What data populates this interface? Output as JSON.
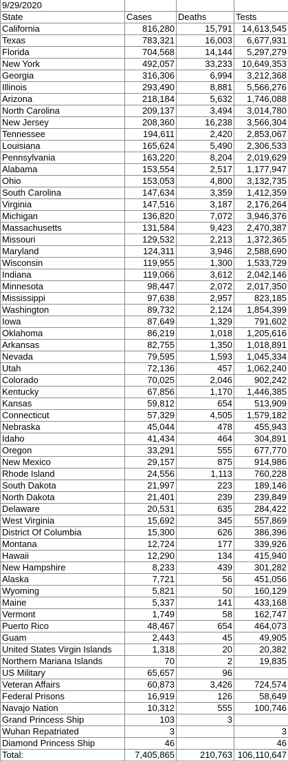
{
  "date": "9/29/2020",
  "headers": [
    "State",
    "Cases",
    "Deaths",
    "Tests"
  ],
  "rows": [
    [
      "California",
      "816,280",
      "15,791",
      "14,613,545"
    ],
    [
      "Texas",
      "783,321",
      "16,003",
      "6,677,931"
    ],
    [
      "Florida",
      "704,568",
      "14,144",
      "5,297,279"
    ],
    [
      "New York",
      "492,057",
      "33,233",
      "10,649,353"
    ],
    [
      "Georgia",
      "316,306",
      "6,994",
      "3,212,368"
    ],
    [
      "Illinois",
      "293,490",
      "8,881",
      "5,566,276"
    ],
    [
      "Arizona",
      "218,184",
      "5,632",
      "1,746,088"
    ],
    [
      "North Carolina",
      "209,137",
      "3,494",
      "3,014,780"
    ],
    [
      "New Jersey",
      "208,360",
      "16,238",
      "3,566,304"
    ],
    [
      "Tennessee",
      "194,611",
      "2,420",
      "2,853,067"
    ],
    [
      "Louisiana",
      "165,624",
      "5,490",
      "2,306,533"
    ],
    [
      "Pennsylvania",
      "163,220",
      "8,204",
      "2,019,629"
    ],
    [
      "Alabama",
      "153,554",
      "2,517",
      "1,177,947"
    ],
    [
      "Ohio",
      "153,053",
      "4,800",
      "3,132,735"
    ],
    [
      "South Carolina",
      "147,634",
      "3,359",
      "1,412,359"
    ],
    [
      "Virginia",
      "147,516",
      "3,187",
      "2,176,264"
    ],
    [
      "Michigan",
      "136,820",
      "7,072",
      "3,946,376"
    ],
    [
      "Massachusetts",
      "131,584",
      "9,423",
      "2,470,387"
    ],
    [
      "Missouri",
      "129,532",
      "2,213",
      "1,372,365"
    ],
    [
      "Maryland",
      "124,311",
      "3,946",
      "2,588,690"
    ],
    [
      "Wisconsin",
      "119,955",
      "1,300",
      "1,533,729"
    ],
    [
      "Indiana",
      "119,066",
      "3,612",
      "2,042,146"
    ],
    [
      "Minnesota",
      "98,447",
      "2,072",
      "2,017,350"
    ],
    [
      "Mississippi",
      "97,638",
      "2,957",
      "823,185"
    ],
    [
      "Washington",
      "89,732",
      "2,124",
      "1,854,399"
    ],
    [
      "Iowa",
      "87,649",
      "1,329",
      "791,602"
    ],
    [
      "Oklahoma",
      "86,219",
      "1,018",
      "1,205,616"
    ],
    [
      "Arkansas",
      "82,755",
      "1,350",
      "1,018,891"
    ],
    [
      "Nevada",
      "79,595",
      "1,593",
      "1,045,334"
    ],
    [
      "Utah",
      "72,136",
      "457",
      "1,062,240"
    ],
    [
      "Colorado",
      "70,025",
      "2,046",
      "902,242"
    ],
    [
      "Kentucky",
      "67,856",
      "1,170",
      "1,446,385"
    ],
    [
      "Kansas",
      "59,812",
      "654",
      "513,909"
    ],
    [
      "Connecticut",
      "57,329",
      "4,505",
      "1,579,182"
    ],
    [
      "Nebraska",
      "45,044",
      "478",
      "455,943"
    ],
    [
      "Idaho",
      "41,434",
      "464",
      "304,891"
    ],
    [
      "Oregon",
      "33,291",
      "555",
      "677,770"
    ],
    [
      "New Mexico",
      "29,157",
      "875",
      "914,986"
    ],
    [
      "Rhode Island",
      "24,556",
      "1,113",
      "760,228"
    ],
    [
      "South Dakota",
      "21,997",
      "223",
      "189,146"
    ],
    [
      "North Dakota",
      "21,401",
      "239",
      "239,849"
    ],
    [
      "Delaware",
      "20,531",
      "635",
      "284,422"
    ],
    [
      "West Virginia",
      "15,692",
      "345",
      "557,869"
    ],
    [
      "District Of Columbia",
      "15,300",
      "626",
      "386,396"
    ],
    [
      "Montana",
      "12,724",
      "177",
      "339,926"
    ],
    [
      "Hawaii",
      "12,290",
      "134",
      "415,940"
    ],
    [
      "New Hampshire",
      "8,233",
      "439",
      "301,282"
    ],
    [
      "Alaska",
      "7,721",
      "56",
      "451,056"
    ],
    [
      "Wyoming",
      "5,821",
      "50",
      "160,129"
    ],
    [
      "Maine",
      "5,337",
      "141",
      "433,168"
    ],
    [
      "Vermont",
      "1,749",
      "58",
      "162,747"
    ],
    [
      "Puerto Rico",
      "48,467",
      "654",
      "464,073"
    ],
    [
      "Guam",
      "2,443",
      "45",
      "49,905"
    ],
    [
      "United States Virgin Islands",
      "1,318",
      "20",
      "20,382"
    ],
    [
      "Northern Mariana Islands",
      "70",
      "2",
      "19,835"
    ],
    [
      "US Military",
      "65,657",
      "96",
      ""
    ],
    [
      "Veteran Affairs",
      "60,873",
      "3,426",
      "724,574"
    ],
    [
      "Federal Prisons",
      "16,919",
      "126",
      "58,649"
    ],
    [
      "Navajo Nation",
      "10,312",
      "555",
      "100,746"
    ],
    [
      "Grand Princess Ship",
      "103",
      "3",
      ""
    ],
    [
      "Wuhan Repatriated",
      "3",
      "",
      "3"
    ],
    [
      "Diamond Princess Ship",
      "46",
      "",
      "46"
    ]
  ],
  "total": [
    "Total:",
    "7,405,865",
    "210,763",
    "106,110,647"
  ]
}
